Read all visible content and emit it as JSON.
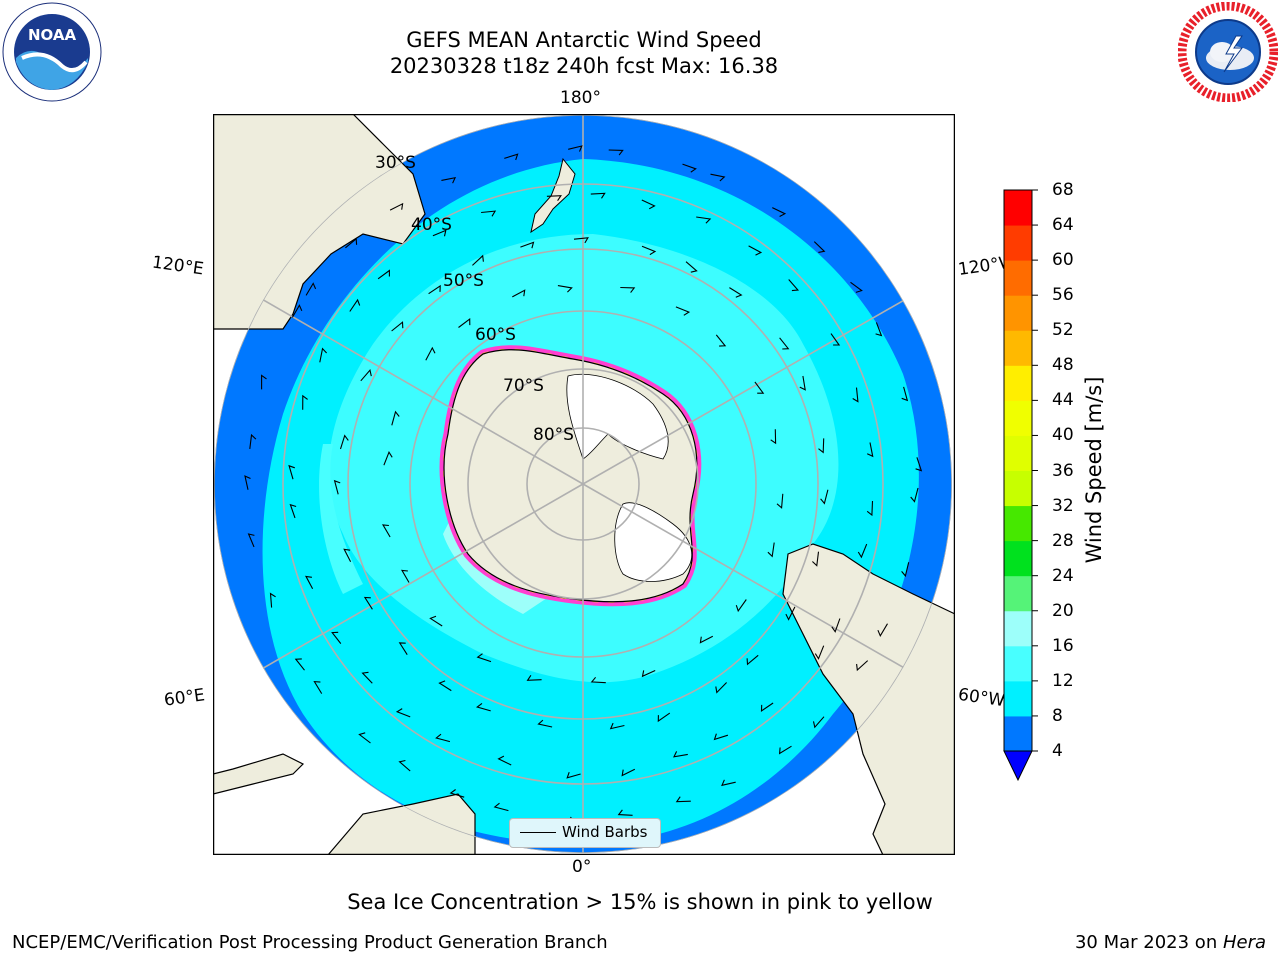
{
  "title": {
    "line1": "GEFS MEAN Antarctic Wind Speed",
    "line2": "20230328 t18z 240h fcst   Max: 16.38"
  },
  "logos": {
    "noaa": {
      "text": "NOAA",
      "ring_text": "NATIONAL OCEANIC AND ATMOSPHERIC ADMINISTRATION · U.S. DEPARTMENT OF COMMERCE"
    },
    "nws": {
      "ring_text": "NATIONAL WEATHER SERVICE"
    }
  },
  "map": {
    "projection": "south-polar-stereographic",
    "longitude_labels": {
      "top": "180°",
      "bottom": "0°",
      "upper_left": "120°E",
      "lower_left": "60°E",
      "upper_right": "120°W",
      "lower_right": "60°W"
    },
    "latitude_labels": [
      "30°S",
      "40°S",
      "50°S",
      "60°S",
      "70°S",
      "80°S"
    ],
    "legend": {
      "label": "Wind Barbs"
    },
    "colors": {
      "land": "#eeeddd",
      "ocean_4_8": "#0078ff",
      "ocean_8_12": "#00f0ff",
      "ocean_12_16": "#48ffff",
      "ocean_16_20": "#9dfffa",
      "sea_ice": "#ff40d0",
      "ice_shelf": "#ffffff",
      "grid": "#b0b0b0"
    }
  },
  "colorbar": {
    "label": "Wind Speed [m/s]",
    "ticks": [
      "4",
      "8",
      "12",
      "16",
      "20",
      "24",
      "28",
      "32",
      "36",
      "40",
      "44",
      "48",
      "52",
      "56",
      "60",
      "64",
      "68"
    ],
    "bins": [
      {
        "min": 4,
        "max": 8,
        "color": "#0078ff"
      },
      {
        "min": 8,
        "max": 12,
        "color": "#00f0ff"
      },
      {
        "min": 12,
        "max": 16,
        "color": "#48ffff"
      },
      {
        "min": 16,
        "max": 20,
        "color": "#9dfffa"
      },
      {
        "min": 20,
        "max": 24,
        "color": "#55f378"
      },
      {
        "min": 24,
        "max": 28,
        "color": "#00e11e"
      },
      {
        "min": 28,
        "max": 32,
        "color": "#46e800"
      },
      {
        "min": 32,
        "max": 36,
        "color": "#c7ff00"
      },
      {
        "min": 36,
        "max": 40,
        "color": "#e0ff00"
      },
      {
        "min": 40,
        "max": 44,
        "color": "#f0ff00"
      },
      {
        "min": 44,
        "max": 48,
        "color": "#ffee00"
      },
      {
        "min": 48,
        "max": 52,
        "color": "#ffb900"
      },
      {
        "min": 52,
        "max": 56,
        "color": "#ff9400"
      },
      {
        "min": 56,
        "max": 60,
        "color": "#ff6c00"
      },
      {
        "min": 60,
        "max": 64,
        "color": "#ff3c00"
      },
      {
        "min": 64,
        "max": 68,
        "color": "#ff0000"
      }
    ],
    "under_color": "#0000ff"
  },
  "caption": "Sea Ice Concentration > 15% is shown in pink to yellow",
  "footer": {
    "left": "NCEP/EMC/Verification Post Processing Product Generation Branch",
    "right_date": "30 Mar 2023 on ",
    "right_machine": "Hera"
  }
}
